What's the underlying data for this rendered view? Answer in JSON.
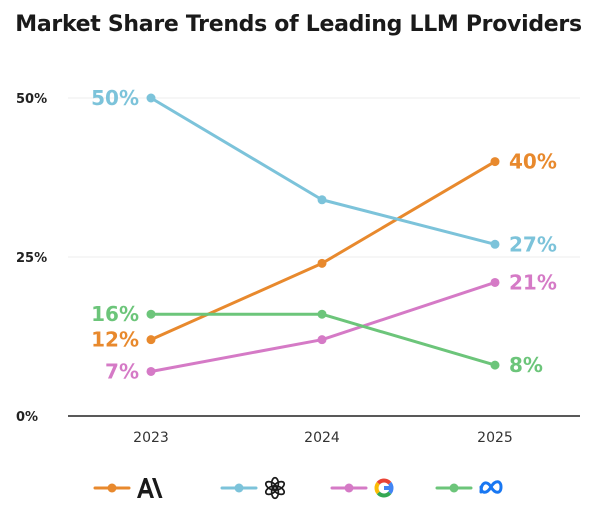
{
  "chart_data": {
    "type": "line",
    "title": "Market Share Trends of Leading LLM Providers",
    "categories": [
      "2023",
      "2024",
      "2025"
    ],
    "ylim": [
      0,
      50
    ],
    "yticks": [
      "0%",
      "25%",
      "50%"
    ],
    "grid": true,
    "legend_position": "bottom",
    "series": [
      {
        "logo": "anthropic-logo",
        "color": "#e8892d",
        "values": [
          12,
          24,
          40
        ],
        "labels": [
          "12%",
          "",
          "40%"
        ]
      },
      {
        "logo": "openai-logo",
        "color": "#7cc3da",
        "values": [
          50,
          34,
          27
        ],
        "labels": [
          "50%",
          "",
          "27%"
        ]
      },
      {
        "logo": "google-logo",
        "color": "#d57ac6",
        "values": [
          7,
          12,
          21
        ],
        "labels": [
          "7%",
          "",
          "21%"
        ]
      },
      {
        "logo": "meta-logo",
        "color": "#6cc57a",
        "values": [
          16,
          16,
          8
        ],
        "labels": [
          "16%",
          "",
          "8%"
        ]
      }
    ]
  }
}
